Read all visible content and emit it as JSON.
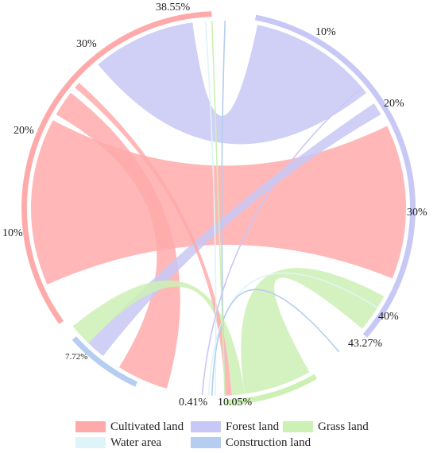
{
  "chart_data": {
    "type": "chord",
    "title": "",
    "categories": [
      "Cultivated land",
      "Forest land",
      "Grass land",
      "Water area",
      "Construction land"
    ],
    "colors": {
      "Cultivated land": "#ffaaaa",
      "Forest land": "#c8c8f6",
      "Grass land": "#cdf0b4",
      "Water area": "#def4f8",
      "Construction land": "#b4cdf0"
    },
    "shares_percent": [
      38.55,
      43.27,
      10.05,
      0.41,
      7.72
    ],
    "tick_labels": [
      "38.55%",
      "10%",
      "20%",
      "30%",
      "40%",
      "43.27%",
      "10.05%",
      "0.41%",
      "7.72%",
      "10%",
      "20%",
      "30%"
    ],
    "legend_placement": "bottom"
  }
}
